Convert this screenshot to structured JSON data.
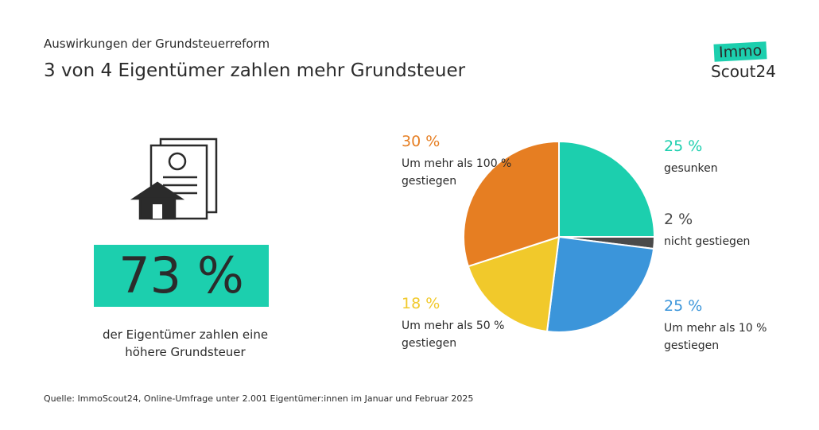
{
  "header": {
    "subtitle": "Auswirkungen der Grundsteuerreform",
    "title": "3 von 4 Eigentümer zahlen mehr Grundsteuer"
  },
  "logo": {
    "top": "Immo",
    "bottom": "Scout24"
  },
  "stat": {
    "label": "73 %",
    "text": "der Eigentümer zahlen eine höhere Grundsteuer"
  },
  "chart_data": {
    "type": "pie",
    "categories": [
      "gesunken",
      "nicht gestiegen",
      "Um mehr als 10 % gestiegen",
      "Um mehr als 50 % gestiegen",
      "Um mehr als 100 % gestiegen"
    ],
    "values": [
      25,
      2,
      25,
      18,
      30
    ],
    "value_labels": [
      "25 %",
      "2 %",
      "25 %",
      "18 %",
      "30 %"
    ],
    "colors": [
      "#1ccfae",
      "#4a4a4a",
      "#3b95da",
      "#f1c92b",
      "#e67e22"
    ]
  },
  "source": "Quelle: ImmoScout24, Online-Umfrage unter 2.001 Eigentümer:innen im Januar und Februar 2025"
}
